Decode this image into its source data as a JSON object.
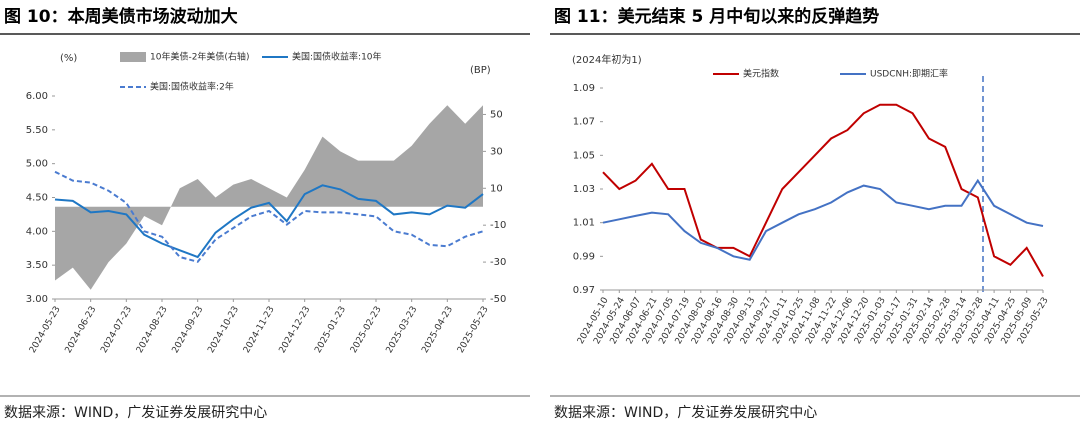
{
  "chart_data": [
    {
      "type": "line",
      "title": "图 10：本周美债市场波动加大",
      "source": "数据来源：WIND，广发证券发展研究中心",
      "y_unit": "(%)",
      "y2_unit": "(BP)",
      "x": [
        "2024-05-23",
        "2024-06-08",
        "2024-06-23",
        "2024-07-08",
        "2024-07-23",
        "2024-08-08",
        "2024-08-23",
        "2024-09-08",
        "2024-09-23",
        "2024-10-08",
        "2024-10-23",
        "2024-11-08",
        "2024-11-23",
        "2024-12-08",
        "2024-12-23",
        "2025-01-08",
        "2025-01-23",
        "2025-02-08",
        "2025-02-23",
        "2025-03-08",
        "2025-03-23",
        "2025-04-08",
        "2025-04-23",
        "2025-05-08",
        "2025-05-23"
      ],
      "xticks": [
        "2024-05-23",
        "2024-06-23",
        "2024-07-23",
        "2024-08-23",
        "2024-09-23",
        "2024-10-23",
        "2024-11-23",
        "2024-12-23",
        "2025-01-23",
        "2025-02-23",
        "2025-03-23",
        "2025-04-23",
        "2025-05-23"
      ],
      "ylim": [
        3,
        6
      ],
      "yticks": [
        {
          "value": 3,
          "label": "3.00"
        },
        {
          "value": 3.5,
          "label": "3.50"
        },
        {
          "value": 4,
          "label": "4.00"
        },
        {
          "value": 4.5,
          "label": "4.50"
        },
        {
          "value": 5,
          "label": "5.00"
        },
        {
          "value": 5.5,
          "label": "5.50"
        },
        {
          "value": 6,
          "label": "6.00"
        }
      ],
      "y2lim": [
        -50,
        60
      ],
      "y2ticks": [
        -50,
        -30,
        -10,
        10,
        30,
        50
      ],
      "series": [
        {
          "name": "10年美债-2年美债(右轴)",
          "kind": "area",
          "axis": "y2",
          "color": "#a6a6a6",
          "values": [
            -40,
            -33,
            -45,
            -30,
            -20,
            -5,
            -10,
            10,
            15,
            5,
            12,
            15,
            10,
            5,
            20,
            38,
            30,
            25,
            25,
            25,
            33,
            45,
            55,
            45,
            55
          ]
        },
        {
          "name": "美国:国债收益率:10年",
          "kind": "solid",
          "color": "#1f77c4",
          "values": [
            4.47,
            4.45,
            4.28,
            4.3,
            4.25,
            3.95,
            3.82,
            3.72,
            3.62,
            3.98,
            4.18,
            4.35,
            4.42,
            4.15,
            4.55,
            4.68,
            4.62,
            4.48,
            4.45,
            4.25,
            4.28,
            4.25,
            4.38,
            4.35,
            4.55
          ]
        },
        {
          "name": "美国:国债收益率:2年",
          "kind": "dashed",
          "color": "#4a7bd0",
          "values": [
            4.88,
            4.75,
            4.72,
            4.6,
            4.42,
            4.0,
            3.92,
            3.62,
            3.55,
            3.88,
            4.05,
            4.22,
            4.3,
            4.1,
            4.3,
            4.28,
            4.28,
            4.25,
            4.22,
            4.0,
            3.95,
            3.8,
            3.78,
            3.92,
            4.0
          ]
        }
      ]
    },
    {
      "type": "line",
      "title": "图 11：美元结束 5 月中旬以来的反弹趋势",
      "source": "数据来源：WIND，广发证券发展研究中心",
      "y_unit": "(2024年初为1)",
      "x": [
        "2024-05-10",
        "2024-05-24",
        "2024-06-07",
        "2024-06-21",
        "2024-07-05",
        "2024-07-19",
        "2024-08-02",
        "2024-08-16",
        "2024-08-30",
        "2024-09-13",
        "2024-09-27",
        "2024-10-11",
        "2024-10-25",
        "2024-11-08",
        "2024-11-22",
        "2024-12-06",
        "2024-12-20",
        "2025-01-03",
        "2025-01-17",
        "2025-01-31",
        "2025-02-14",
        "2025-02-28",
        "2025-03-14",
        "2025-03-28",
        "2025-04-11",
        "2025-04-25",
        "2025-05-09",
        "2025-05-23"
      ],
      "xticks": [
        "2024-05-10",
        "2024-05-24",
        "2024-06-07",
        "2024-06-21",
        "2024-07-05",
        "2024-07-19",
        "2024-08-02",
        "2024-08-16",
        "2024-08-30",
        "2024-09-13",
        "2024-09-27",
        "2024-10-11",
        "2024-10-25",
        "2024-11-08",
        "2024-11-22",
        "2024-12-06",
        "2024-12-20",
        "2025-01-03",
        "2025-01-17",
        "2025-01-31",
        "2025-02-14",
        "2025-02-28",
        "2025-03-14",
        "2025-03-28",
        "2025-04-11",
        "2025-04-25",
        "2025-05-09",
        "2025-05-23"
      ],
      "ylim": [
        0.97,
        1.09
      ],
      "yticks": [
        0.97,
        0.99,
        1.01,
        1.03,
        1.05,
        1.07,
        1.09
      ],
      "series": [
        {
          "name": "美元指数",
          "kind": "solid",
          "color": "#c00000",
          "values": [
            1.04,
            1.03,
            1.035,
            1.045,
            1.03,
            1.03,
            1.0,
            0.995,
            0.995,
            0.99,
            1.01,
            1.03,
            1.04,
            1.05,
            1.06,
            1.065,
            1.075,
            1.08,
            1.08,
            1.075,
            1.06,
            1.055,
            1.03,
            1.025,
            0.99,
            0.985,
            0.995,
            0.978
          ]
        },
        {
          "name": "USDCNH:即期汇率",
          "kind": "solid",
          "color": "#4472c4",
          "values": [
            1.01,
            1.012,
            1.014,
            1.016,
            1.015,
            1.005,
            0.998,
            0.995,
            0.99,
            0.988,
            1.005,
            1.01,
            1.015,
            1.018,
            1.022,
            1.028,
            1.032,
            1.03,
            1.022,
            1.02,
            1.018,
            1.02,
            1.02,
            1.035,
            1.02,
            1.015,
            1.01,
            1.008
          ]
        }
      ]
    }
  ]
}
